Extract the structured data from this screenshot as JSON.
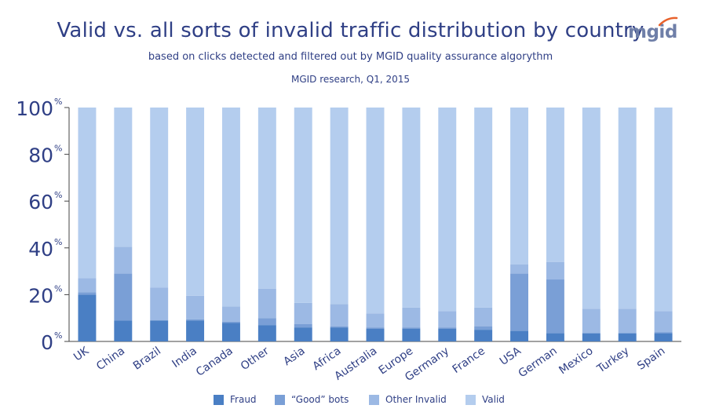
{
  "header": {
    "title": "Valid vs. all sorts of invalid traffic distribution by country",
    "subtitle": "based on clicks detected and  filtered out by MGID quality assurance algorythm",
    "research": "MGID research, Q1, 2015",
    "logo_text": "mgid"
  },
  "colors": {
    "fraud": "#4a7fc4",
    "good_bots": "#7a9fd6",
    "other_invalid": "#9cb9e4",
    "valid": "#b4cdee",
    "text": "#2f3f85",
    "axis": "#444444"
  },
  "chart_data": {
    "type": "bar",
    "stacked": true,
    "title": "Valid vs. all sorts of invalid traffic distribution by country",
    "categories": [
      "UK",
      "China",
      "Brazil",
      "India",
      "Canada",
      "Other",
      "Asia",
      "Africa",
      "Australia",
      "Europe",
      "Germany",
      "France",
      "USA",
      "German",
      "Mexico",
      "Turkey",
      "Spain"
    ],
    "series": [
      {
        "name": "Fraud",
        "values": [
          20,
          9,
          9,
          9,
          8,
          7,
          6,
          6,
          5.5,
          5.5,
          5.5,
          5,
          4.5,
          3.5,
          3.5,
          3.5,
          3.5
        ]
      },
      {
        "name": "“Good” bots",
        "values": [
          1,
          20,
          0,
          0.5,
          0.5,
          3,
          1.5,
          0.5,
          0.5,
          0.5,
          0.5,
          1.5,
          24.5,
          23,
          0,
          0,
          0.5
        ]
      },
      {
        "name": "Other Invalid",
        "values": [
          6,
          11.5,
          14,
          10,
          6.5,
          12.5,
          9,
          9.5,
          6,
          8.5,
          7,
          8,
          4,
          7.5,
          10.5,
          10.5,
          9
        ]
      },
      {
        "name": "Valid",
        "values": [
          73,
          59.5,
          77,
          80.5,
          85,
          77.5,
          83.5,
          84,
          88,
          85.5,
          87,
          85.5,
          67,
          66,
          86,
          86,
          87
        ]
      }
    ],
    "yticks": [
      "0",
      "20",
      "40",
      "60",
      "80",
      "100"
    ],
    "ytick_unit": "%",
    "ylim": [
      0,
      100
    ],
    "legend_position": "bottom"
  }
}
